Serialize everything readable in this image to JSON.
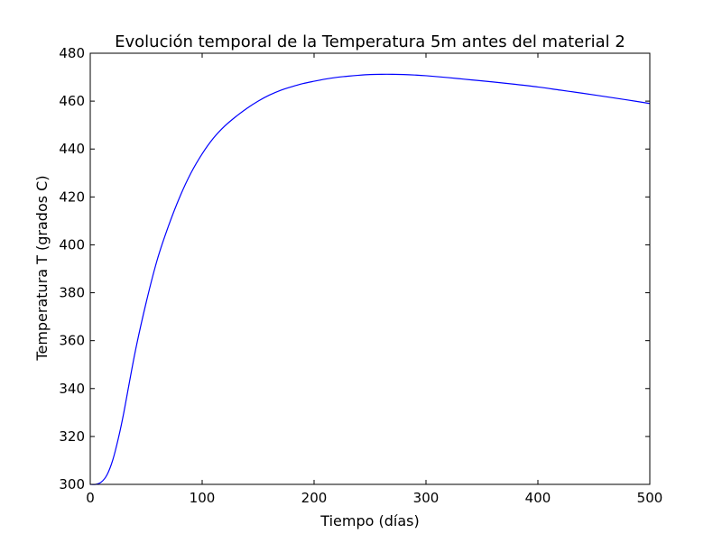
{
  "chart_data": {
    "type": "line",
    "title": "Evolución temporal de la Temperatura 5m antes del material 2",
    "xlabel": "Tiempo (días)",
    "ylabel": "Temperatura T (grados C)",
    "xlim": [
      0,
      500
    ],
    "ylim": [
      300,
      480
    ],
    "xticks": [
      0,
      100,
      200,
      300,
      400,
      500
    ],
    "yticks": [
      300,
      320,
      340,
      360,
      380,
      400,
      420,
      440,
      460,
      480
    ],
    "grid": false,
    "legend": "none",
    "series": [
      {
        "color": "#0000ff",
        "x": [
          0,
          5,
          10,
          15,
          20,
          25,
          30,
          40,
          50,
          60,
          70,
          80,
          90,
          100,
          110,
          120,
          130,
          140,
          150,
          160,
          170,
          180,
          190,
          200,
          210,
          220,
          230,
          240,
          250,
          260,
          270,
          280,
          290,
          300,
          320,
          340,
          360,
          380,
          400,
          420,
          440,
          460,
          480,
          500
        ],
        "y": [
          300,
          300,
          301,
          304,
          310,
          319,
          330,
          355,
          376,
          394,
          408,
          420,
          430,
          438,
          444.5,
          449.5,
          453.5,
          457,
          460,
          462.5,
          464.5,
          466,
          467.3,
          468.3,
          469.2,
          469.9,
          470.4,
          470.8,
          471.1,
          471.2,
          471.2,
          471.1,
          470.9,
          470.6,
          469.8,
          468.9,
          468.0,
          467.0,
          465.9,
          464.6,
          463.3,
          461.9,
          460.5,
          459.0
        ]
      }
    ]
  }
}
